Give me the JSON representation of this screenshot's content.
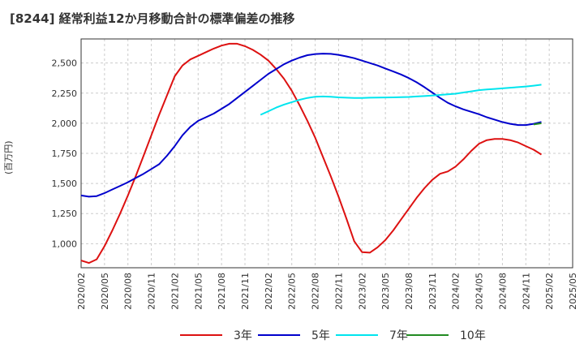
{
  "chart_data": {
    "type": "line",
    "title": "[8244]  経常利益12か月移動合計の標準偏差の推移",
    "ylabel": "(百万円)",
    "xlabel": "",
    "x_ticks": [
      "2020/02",
      "2020/05",
      "2020/08",
      "2020/11",
      "2021/02",
      "2021/05",
      "2021/08",
      "2021/11",
      "2022/02",
      "2022/05",
      "2022/08",
      "2022/11",
      "2023/02",
      "2023/05",
      "2023/08",
      "2023/11",
      "2024/02",
      "2024/05",
      "2024/08",
      "2024/11",
      "2025/02",
      "2025/05"
    ],
    "y_ticks": [
      "1,000",
      "1,250",
      "1,500",
      "1,750",
      "2,000",
      "2,250",
      "2,500"
    ],
    "ylim": [
      800,
      2700
    ],
    "grid": true,
    "legend_position": "bottom",
    "series": [
      {
        "name": "3年",
        "color": "#dd1111",
        "points": [
          [
            "2020/02",
            860
          ],
          [
            "2020/03",
            840
          ],
          [
            "2020/04",
            870
          ],
          [
            "2020/05",
            980
          ],
          [
            "2020/06",
            1110
          ],
          [
            "2020/07",
            1250
          ],
          [
            "2020/08",
            1400
          ],
          [
            "2020/09",
            1560
          ],
          [
            "2020/10",
            1730
          ],
          [
            "2020/11",
            1900
          ],
          [
            "2020/12",
            2070
          ],
          [
            "2021/01",
            2230
          ],
          [
            "2021/02",
            2390
          ],
          [
            "2021/03",
            2480
          ],
          [
            "2021/04",
            2530
          ],
          [
            "2021/05",
            2560
          ],
          [
            "2021/06",
            2590
          ],
          [
            "2021/07",
            2620
          ],
          [
            "2021/08",
            2645
          ],
          [
            "2021/09",
            2660
          ],
          [
            "2021/10",
            2660
          ],
          [
            "2021/11",
            2640
          ],
          [
            "2021/12",
            2610
          ],
          [
            "2022/01",
            2570
          ],
          [
            "2022/02",
            2520
          ],
          [
            "2022/03",
            2450
          ],
          [
            "2022/04",
            2370
          ],
          [
            "2022/05",
            2270
          ],
          [
            "2022/06",
            2150
          ],
          [
            "2022/07",
            2020
          ],
          [
            "2022/08",
            1880
          ],
          [
            "2022/09",
            1720
          ],
          [
            "2022/10",
            1560
          ],
          [
            "2022/11",
            1390
          ],
          [
            "2022/12",
            1210
          ],
          [
            "2023/01",
            1020
          ],
          [
            "2023/02",
            930
          ],
          [
            "2023/03",
            925
          ],
          [
            "2023/04",
            970
          ],
          [
            "2023/05",
            1030
          ],
          [
            "2023/06",
            1110
          ],
          [
            "2023/07",
            1200
          ],
          [
            "2023/08",
            1290
          ],
          [
            "2023/09",
            1380
          ],
          [
            "2023/10",
            1460
          ],
          [
            "2023/11",
            1530
          ],
          [
            "2023/12",
            1580
          ],
          [
            "2024/01",
            1600
          ],
          [
            "2024/02",
            1640
          ],
          [
            "2024/03",
            1700
          ],
          [
            "2024/04",
            1770
          ],
          [
            "2024/05",
            1830
          ],
          [
            "2024/06",
            1860
          ],
          [
            "2024/07",
            1870
          ],
          [
            "2024/08",
            1870
          ],
          [
            "2024/09",
            1860
          ],
          [
            "2024/10",
            1840
          ],
          [
            "2024/11",
            1810
          ],
          [
            "2024/12",
            1780
          ],
          [
            "2025/01",
            1740
          ]
        ]
      },
      {
        "name": "5年",
        "color": "#0000cc",
        "points": [
          [
            "2020/02",
            1400
          ],
          [
            "2020/03",
            1390
          ],
          [
            "2020/04",
            1395
          ],
          [
            "2020/05",
            1420
          ],
          [
            "2020/06",
            1450
          ],
          [
            "2020/07",
            1480
          ],
          [
            "2020/08",
            1510
          ],
          [
            "2020/09",
            1545
          ],
          [
            "2020/10",
            1580
          ],
          [
            "2020/11",
            1620
          ],
          [
            "2020/12",
            1660
          ],
          [
            "2021/01",
            1730
          ],
          [
            "2021/02",
            1810
          ],
          [
            "2021/03",
            1900
          ],
          [
            "2021/04",
            1970
          ],
          [
            "2021/05",
            2020
          ],
          [
            "2021/06",
            2050
          ],
          [
            "2021/07",
            2080
          ],
          [
            "2021/08",
            2120
          ],
          [
            "2021/09",
            2160
          ],
          [
            "2021/10",
            2210
          ],
          [
            "2021/11",
            2260
          ],
          [
            "2021/12",
            2310
          ],
          [
            "2022/01",
            2360
          ],
          [
            "2022/02",
            2410
          ],
          [
            "2022/03",
            2450
          ],
          [
            "2022/04",
            2490
          ],
          [
            "2022/05",
            2520
          ],
          [
            "2022/06",
            2545
          ],
          [
            "2022/07",
            2565
          ],
          [
            "2022/08",
            2575
          ],
          [
            "2022/09",
            2578
          ],
          [
            "2022/10",
            2576
          ],
          [
            "2022/11",
            2568
          ],
          [
            "2022/12",
            2555
          ],
          [
            "2023/01",
            2540
          ],
          [
            "2023/02",
            2520
          ],
          [
            "2023/03",
            2500
          ],
          [
            "2023/04",
            2480
          ],
          [
            "2023/05",
            2455
          ],
          [
            "2023/06",
            2430
          ],
          [
            "2023/07",
            2405
          ],
          [
            "2023/08",
            2375
          ],
          [
            "2023/09",
            2340
          ],
          [
            "2023/10",
            2300
          ],
          [
            "2023/11",
            2255
          ],
          [
            "2023/12",
            2210
          ],
          [
            "2024/01",
            2170
          ],
          [
            "2024/02",
            2140
          ],
          [
            "2024/03",
            2115
          ],
          [
            "2024/04",
            2095
          ],
          [
            "2024/05",
            2075
          ],
          [
            "2024/06",
            2050
          ],
          [
            "2024/07",
            2030
          ],
          [
            "2024/08",
            2010
          ],
          [
            "2024/09",
            1995
          ],
          [
            "2024/10",
            1985
          ],
          [
            "2024/11",
            1985
          ],
          [
            "2024/12",
            1995
          ],
          [
            "2025/01",
            2010
          ]
        ]
      },
      {
        "name": "7年",
        "color": "#00e5ee",
        "points": [
          [
            "2022/01",
            2070
          ],
          [
            "2022/02",
            2100
          ],
          [
            "2022/03",
            2130
          ],
          [
            "2022/04",
            2155
          ],
          [
            "2022/05",
            2175
          ],
          [
            "2022/06",
            2195
          ],
          [
            "2022/07",
            2210
          ],
          [
            "2022/08",
            2220
          ],
          [
            "2022/09",
            2222
          ],
          [
            "2022/10",
            2220
          ],
          [
            "2022/11",
            2215
          ],
          [
            "2022/12",
            2212
          ],
          [
            "2023/01",
            2210
          ],
          [
            "2023/02",
            2210
          ],
          [
            "2023/03",
            2212
          ],
          [
            "2023/04",
            2213
          ],
          [
            "2023/05",
            2214
          ],
          [
            "2023/06",
            2215
          ],
          [
            "2023/07",
            2216
          ],
          [
            "2023/08",
            2218
          ],
          [
            "2023/09",
            2222
          ],
          [
            "2023/10",
            2226
          ],
          [
            "2023/11",
            2230
          ],
          [
            "2023/12",
            2235
          ],
          [
            "2024/01",
            2240
          ],
          [
            "2024/02",
            2245
          ],
          [
            "2024/03",
            2255
          ],
          [
            "2024/04",
            2265
          ],
          [
            "2024/05",
            2275
          ],
          [
            "2024/06",
            2280
          ],
          [
            "2024/07",
            2285
          ],
          [
            "2024/08",
            2290
          ],
          [
            "2024/09",
            2295
          ],
          [
            "2024/10",
            2300
          ],
          [
            "2024/11",
            2305
          ],
          [
            "2024/12",
            2312
          ],
          [
            "2025/01",
            2320
          ]
        ]
      },
      {
        "name": "10年",
        "color": "#228b22",
        "points": [
          [
            "2024/12",
            1990
          ],
          [
            "2025/01",
            2000
          ]
        ]
      }
    ]
  }
}
